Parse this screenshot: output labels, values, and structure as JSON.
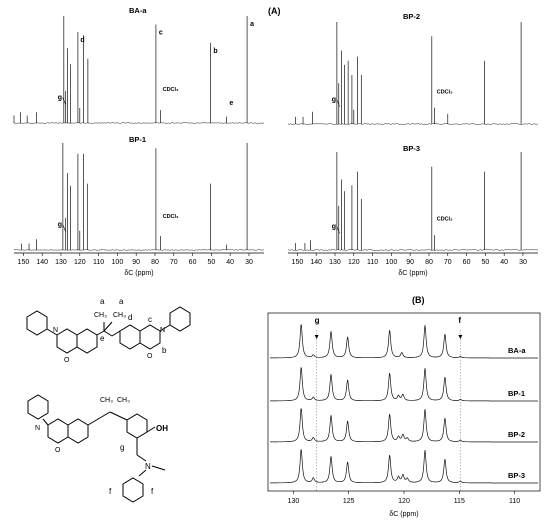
{
  "panel_a_label": "(A)",
  "panel_b_label": "(B)",
  "spectra_a": [
    {
      "name": "BA-a",
      "peak_labels": [
        {
          "text": "a",
          "ppm": 31.0
        },
        {
          "text": "b",
          "ppm": 50.5
        },
        {
          "text": "c",
          "ppm": 79.5
        },
        {
          "text": "d",
          "ppm": 121.3
        },
        {
          "text": "e",
          "ppm": 42.0
        },
        {
          "text": "g",
          "ppm": 127.5
        },
        {
          "text": "CDCl₃",
          "ppm": 77.0
        }
      ]
    },
    {
      "name": "BP-2",
      "peak_labels": [
        {
          "text": "g",
          "ppm": 127.5
        },
        {
          "text": "CDCl₃",
          "ppm": 77.0
        }
      ]
    },
    {
      "name": "BP-1",
      "peak_labels": [
        {
          "text": "g",
          "ppm": 127.5
        },
        {
          "text": "CDCl₃",
          "ppm": 77.0
        }
      ]
    },
    {
      "name": "BP-3",
      "peak_labels": [
        {
          "text": "g",
          "ppm": 127.5
        },
        {
          "text": "CDCl₃",
          "ppm": 77.0
        }
      ]
    }
  ],
  "axis_a": {
    "ticks": [
      "150",
      "140",
      "130",
      "120",
      "110",
      "100",
      "90",
      "80",
      "70",
      "60",
      "50",
      "40",
      "30"
    ],
    "xlabel": "δC (ppm)"
  },
  "panel_b": {
    "traces": [
      "BA-a",
      "BP-1",
      "BP-2",
      "BP-3"
    ],
    "markers": [
      "g",
      "f"
    ],
    "ticks": [
      "130",
      "125",
      "120",
      "115",
      "110"
    ],
    "xlabel": "δC (ppm)"
  },
  "structure_labels": {
    "bisbenzoxazine": [
      "a",
      "a",
      "CH₃",
      "CH₃",
      "e",
      "c",
      "d",
      "b"
    ],
    "open_ring": [
      "CH₃",
      "CH₃",
      "OH",
      "g",
      "N",
      "f",
      "f"
    ]
  },
  "chart_data": [
    {
      "type": "line",
      "title": "BA-a",
      "xlabel": "δC (ppm)",
      "xlim": [
        155,
        22
      ],
      "peaks": [
        [
          155,
          0.07
        ],
        [
          151.5,
          0.1
        ],
        [
          148,
          0.07
        ],
        [
          143,
          0.1
        ],
        [
          128.5,
          1
        ],
        [
          127.5,
          0.3
        ],
        [
          126.5,
          0.7
        ],
        [
          125,
          0.55
        ],
        [
          121,
          0.85
        ],
        [
          120,
          0.14
        ],
        [
          118,
          0.82
        ],
        [
          115.7,
          0.6
        ],
        [
          79.5,
          0.92
        ],
        [
          77,
          0.12
        ],
        [
          50.5,
          0.75
        ],
        [
          42,
          0.06
        ],
        [
          31,
          1
        ]
      ]
    },
    {
      "type": "line",
      "title": "BP-2",
      "xlabel": "δC (ppm)",
      "xlim": [
        155,
        22
      ],
      "peaks": [
        [
          151,
          0.07
        ],
        [
          147,
          0.07
        ],
        [
          142,
          0.12
        ],
        [
          129,
          1
        ],
        [
          128,
          0.4
        ],
        [
          126.5,
          0.72
        ],
        [
          125,
          0.58
        ],
        [
          123,
          0.62
        ],
        [
          121,
          0.48
        ],
        [
          120,
          0.14
        ],
        [
          118,
          0.66
        ],
        [
          116,
          0.48
        ],
        [
          78.5,
          0.86
        ],
        [
          77,
          0.16
        ],
        [
          70,
          0.1
        ],
        [
          50.5,
          0.62
        ],
        [
          31,
          1
        ]
      ]
    },
    {
      "type": "line",
      "title": "BP-1",
      "xlabel": "δC (ppm)",
      "xlim": [
        155,
        22
      ],
      "peaks": [
        [
          151,
          0.06
        ],
        [
          147,
          0.06
        ],
        [
          143,
          0.1
        ],
        [
          129,
          1
        ],
        [
          127.5,
          0.3
        ],
        [
          126.5,
          0.72
        ],
        [
          125,
          0.6
        ],
        [
          121,
          0.9
        ],
        [
          120,
          0.18
        ],
        [
          118,
          0.9
        ],
        [
          116,
          0.62
        ],
        [
          79.5,
          0.95
        ],
        [
          77,
          0.13
        ],
        [
          50.5,
          0.62
        ],
        [
          42,
          0.05
        ],
        [
          31,
          1
        ]
      ]
    },
    {
      "type": "line",
      "title": "BP-3",
      "xlabel": "δC (ppm)",
      "xlim": [
        155,
        22
      ],
      "peaks": [
        [
          151,
          0.07
        ],
        [
          146,
          0.07
        ],
        [
          143,
          0.1
        ],
        [
          129,
          1
        ],
        [
          128,
          0.45
        ],
        [
          126.5,
          0.72
        ],
        [
          125,
          0.6
        ],
        [
          121,
          0.66
        ],
        [
          118,
          0.8
        ],
        [
          116,
          0.52
        ],
        [
          78.5,
          0.85
        ],
        [
          77,
          0.15
        ],
        [
          50.5,
          0.8
        ],
        [
          31,
          1
        ]
      ]
    },
    {
      "type": "line",
      "title": "(B)",
      "xlabel": "δC (ppm)",
      "xlim": [
        132.3,
        107.7
      ],
      "series": [
        {
          "name": "BA-a",
          "peaks": [
            [
              129.3,
              1
            ],
            [
              128.2,
              0.08
            ],
            [
              126.6,
              0.78
            ],
            [
              125.1,
              0.62
            ],
            [
              121.3,
              0.82
            ],
            [
              120.2,
              0.15
            ],
            [
              118.1,
              0.96
            ],
            [
              116.3,
              0.7
            ],
            [
              114.9,
              0.04
            ]
          ]
        },
        {
          "name": "BP-1",
          "peaks": [
            [
              129.3,
              1
            ],
            [
              128.2,
              0.1
            ],
            [
              126.6,
              0.78
            ],
            [
              125.1,
              0.62
            ],
            [
              121.3,
              0.82
            ],
            [
              120.5,
              0.14
            ],
            [
              120.1,
              0.18
            ],
            [
              118.1,
              0.96
            ],
            [
              116.3,
              0.7
            ],
            [
              114.9,
              0.04
            ]
          ]
        },
        {
          "name": "BP-2",
          "peaks": [
            [
              129.3,
              1
            ],
            [
              128.2,
              0.12
            ],
            [
              126.6,
              0.78
            ],
            [
              125.1,
              0.62
            ],
            [
              121.3,
              0.82
            ],
            [
              120.5,
              0.14
            ],
            [
              120.1,
              0.2
            ],
            [
              119.7,
              0.1
            ],
            [
              118.1,
              0.96
            ],
            [
              116.3,
              0.7
            ],
            [
              114.9,
              0.05
            ]
          ]
        },
        {
          "name": "BP-3",
          "peaks": [
            [
              129.3,
              1
            ],
            [
              128.2,
              0.14
            ],
            [
              126.6,
              0.78
            ],
            [
              125.1,
              0.62
            ],
            [
              121.3,
              0.82
            ],
            [
              120.5,
              0.16
            ],
            [
              120.1,
              0.22
            ],
            [
              119.7,
              0.12
            ],
            [
              118.1,
              0.96
            ],
            [
              116.3,
              0.7
            ],
            [
              114.9,
              0.05
            ]
          ]
        }
      ]
    }
  ]
}
